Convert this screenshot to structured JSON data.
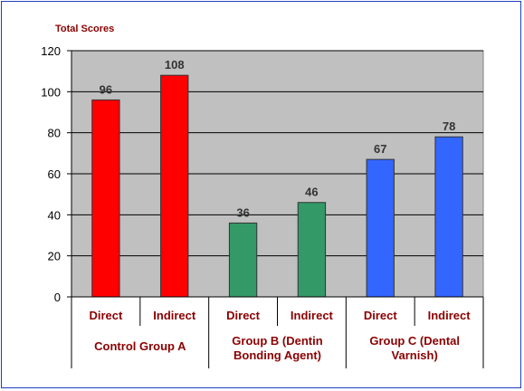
{
  "chart_data": {
    "type": "bar",
    "ylabel": "Total Scores",
    "ylim": [
      0,
      120
    ],
    "yticks": [
      0,
      20,
      40,
      60,
      80,
      100,
      120
    ],
    "groups": [
      {
        "label_lines": [
          "Control Group A"
        ],
        "bars": [
          {
            "category": "Direct",
            "value": 96,
            "color": "#ff0000"
          },
          {
            "category": "Indirect",
            "value": 108,
            "color": "#ff0000"
          }
        ]
      },
      {
        "label_lines": [
          "Group B (Dentin",
          "Bonding Agent)"
        ],
        "bars": [
          {
            "category": "Direct",
            "value": 36,
            "color": "#339966"
          },
          {
            "category": "Indirect",
            "value": 46,
            "color": "#339966"
          }
        ]
      },
      {
        "label_lines": [
          "Group C (Dental",
          "Varnish)"
        ],
        "bars": [
          {
            "category": "Direct",
            "value": 67,
            "color": "#3366ff"
          },
          {
            "category": "Indirect",
            "value": 78,
            "color": "#3366ff"
          }
        ]
      }
    ],
    "plot_background": "#c0c0c0",
    "grid": true,
    "legend": "none"
  }
}
